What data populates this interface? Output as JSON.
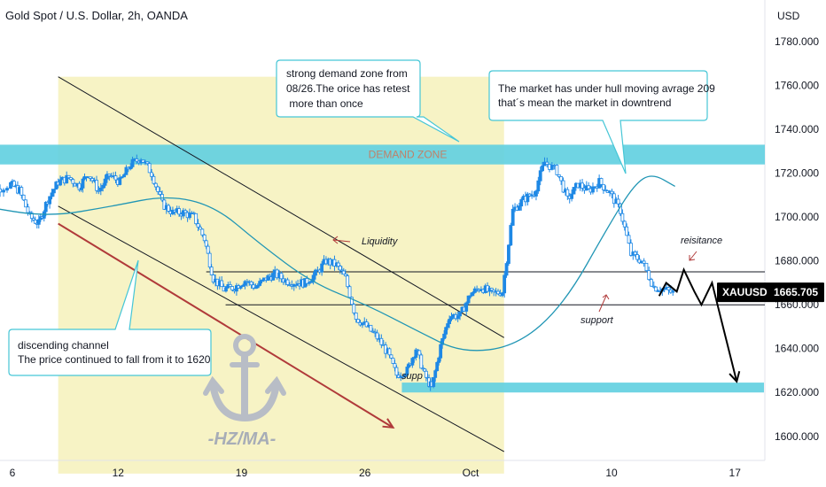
{
  "header": {
    "title": "Gold Spot / U.S. Dollar, 2h, OANDA",
    "currency": "USD"
  },
  "price_badge": {
    "symbol": "XAUUSD",
    "price": "1665.705",
    "color": "#000000"
  },
  "colors": {
    "candle": "#1e88e5",
    "wick": "#1e88e5",
    "ma": "#2196b5",
    "demand_zone": "#5fcfe0",
    "channel_fill": "#f4efb2",
    "arrow_red": "#b03a3a",
    "anchor": "#b8bdc6"
  },
  "chart_data": {
    "type": "candlestick",
    "symbol": "XAUUSD",
    "timeframe": "2h",
    "x_ticks": [
      "6",
      "12",
      "19",
      "26",
      "Oct",
      "10",
      "17"
    ],
    "x_tick_days": [
      6,
      12,
      19,
      26,
      32,
      40,
      47
    ],
    "y_ticks": [
      1600,
      1620,
      1640,
      1660,
      1680,
      1700,
      1720,
      1740,
      1760,
      1780
    ],
    "y_tick_labels": [
      "1600.000",
      "1620.000",
      "1640.000",
      "1660.000",
      "1680.000",
      "1700.000",
      "1720.000",
      "1740.000",
      "1760.000",
      "1780.000"
    ],
    "ylim": [
      1589,
      1799
    ],
    "xlim": [
      5.7,
      49.1
    ],
    "last_price": 1665.705,
    "close_path": [
      [
        4.2,
        1713
      ],
      [
        4.9,
        1712
      ],
      [
        5.9,
        1715
      ],
      [
        6.4,
        1712
      ],
      [
        7.0,
        1700
      ],
      [
        7.5,
        1697
      ],
      [
        8.0,
        1708
      ],
      [
        8.6,
        1716
      ],
      [
        9.2,
        1718
      ],
      [
        9.8,
        1714
      ],
      [
        10.3,
        1720
      ],
      [
        10.9,
        1712
      ],
      [
        11.5,
        1719
      ],
      [
        12.1,
        1716
      ],
      [
        12.7,
        1724
      ],
      [
        13.3,
        1727
      ],
      [
        13.9,
        1720
      ],
      [
        14.5,
        1706
      ],
      [
        15.1,
        1702
      ],
      [
        15.7,
        1702
      ],
      [
        16.3,
        1700
      ],
      [
        16.9,
        1690
      ],
      [
        17.4,
        1672
      ],
      [
        18.0,
        1667
      ],
      [
        18.6,
        1668
      ],
      [
        19.2,
        1671
      ],
      [
        19.8,
        1668
      ],
      [
        20.4,
        1672
      ],
      [
        20.9,
        1674
      ],
      [
        21.5,
        1671
      ],
      [
        22.1,
        1670
      ],
      [
        22.6,
        1670
      ],
      [
        23.2,
        1674
      ],
      [
        23.8,
        1680
      ],
      [
        24.4,
        1678
      ],
      [
        24.9,
        1672
      ],
      [
        25.5,
        1654
      ],
      [
        26.1,
        1650
      ],
      [
        26.7,
        1645
      ],
      [
        27.3,
        1638
      ],
      [
        27.8,
        1628
      ],
      [
        28.4,
        1630
      ],
      [
        28.9,
        1640
      ],
      [
        29.4,
        1628
      ],
      [
        29.8,
        1622
      ],
      [
        30.3,
        1641
      ],
      [
        30.8,
        1655
      ],
      [
        31.4,
        1655
      ],
      [
        32.0,
        1665
      ],
      [
        32.6,
        1668
      ],
      [
        33.2,
        1665
      ],
      [
        33.8,
        1666
      ],
      [
        34.4,
        1703
      ],
      [
        35.0,
        1708
      ],
      [
        35.6,
        1711
      ],
      [
        36.2,
        1725
      ],
      [
        36.9,
        1721
      ],
      [
        37.5,
        1708
      ],
      [
        38.1,
        1715
      ],
      [
        38.7,
        1712
      ],
      [
        39.3,
        1716
      ],
      [
        39.9,
        1711
      ],
      [
        40.5,
        1703
      ],
      [
        41.1,
        1683
      ],
      [
        41.7,
        1680
      ],
      [
        42.4,
        1668
      ],
      [
        43.0,
        1667
      ],
      [
        43.6,
        1665
      ]
    ],
    "moving_average": {
      "name": "Hull moving average 209",
      "path": [
        [
          4.2,
          1705
        ],
        [
          8.0,
          1700
        ],
        [
          11.7,
          1705
        ],
        [
          14.8,
          1710
        ],
        [
          17.5,
          1705
        ],
        [
          20.0,
          1688
        ],
        [
          23.0,
          1670
        ],
        [
          26.1,
          1660
        ],
        [
          29.0,
          1648
        ],
        [
          31.5,
          1638
        ],
        [
          34.6,
          1641
        ],
        [
          37.3,
          1660
        ],
        [
          39.9,
          1697
        ],
        [
          41.3,
          1715
        ],
        [
          42.3,
          1720
        ],
        [
          43.6,
          1714
        ]
      ]
    },
    "demand_zone": {
      "label": "DEMAND ZONE",
      "from": 1724,
      "to": 1733
    },
    "support_zone": {
      "label": "supp",
      "from": 1620,
      "to": 1624.5,
      "x_start": 28.1,
      "x_end": 49.1
    },
    "levels": [
      {
        "name": "resistance",
        "label": "reisitance",
        "price": 1675,
        "x_start": 17.0,
        "x_end": 49.1
      },
      {
        "name": "support",
        "label": "support",
        "price": 1660,
        "x_start": 18.1,
        "x_end": 49.1
      }
    ],
    "channel": {
      "upper": [
        [
          8.6,
          1764
        ],
        [
          33.9,
          1645
        ]
      ],
      "lower": [
        [
          8.6,
          1705
        ],
        [
          33.9,
          1583
        ]
      ],
      "box_x": [
        8.6,
        33.9
      ]
    },
    "projection": [
      [
        42.7,
        1664
      ],
      [
        43.1,
        1670
      ],
      [
        43.7,
        1666
      ],
      [
        44.1,
        1676
      ],
      [
        44.7,
        1666
      ],
      [
        45.1,
        1660
      ],
      [
        45.7,
        1670
      ],
      [
        47.1,
        1625
      ]
    ],
    "red_arrow": [
      [
        8.6,
        1697
      ],
      [
        27.6,
        1604
      ]
    ]
  },
  "annotations": {
    "demand_note": [
      "strong demand zone from",
      "08/26.The orice has retest",
      " more than once"
    ],
    "hull_note": [
      "The market has under hull moving avrage 209",
      "that´s mean the market in downtrend"
    ],
    "channel_note": [
      "discending channel",
      "The price continued to fall from it to 1620"
    ],
    "liquidity": "Liquidity",
    "resistance": "reisitance",
    "support": "support",
    "supp": "supp",
    "demand_zone": "DEMAND ZONE",
    "watermark": "-HZ/MA-"
  }
}
